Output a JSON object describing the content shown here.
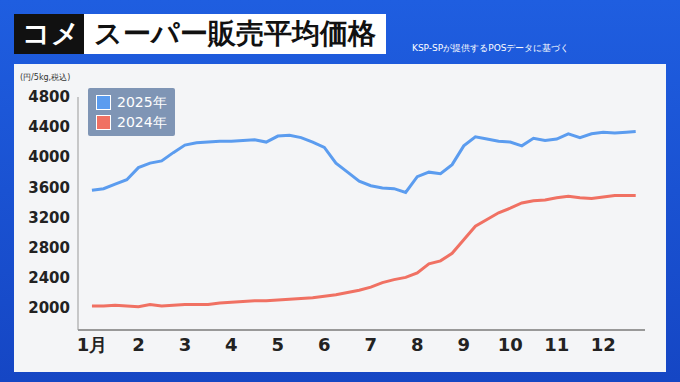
{
  "chart_data": {
    "type": "line",
    "title_label": "コメ",
    "title": "スーパー販売平均価格",
    "source": "KSP-SPが提供するPOSデータに基づく",
    "ylabel": "(円/5kg,税込)",
    "x": [
      1,
      1.25,
      1.5,
      1.75,
      2,
      2.25,
      2.5,
      2.75,
      3,
      3.25,
      3.5,
      3.75,
      4,
      4.25,
      4.5,
      4.75,
      5,
      5.25,
      5.5,
      5.75,
      6,
      6.25,
      6.5,
      6.75,
      7,
      7.25,
      7.5,
      7.75,
      8,
      8.25,
      8.5,
      8.75,
      9,
      9.25,
      9.5,
      9.75,
      10,
      10.25,
      10.5,
      10.75,
      11,
      11.25,
      11.5,
      11.75,
      12,
      12.25,
      12.5,
      12.7
    ],
    "series": [
      {
        "name": "2025年",
        "color": "#5b9cef",
        "values": [
          3560,
          3580,
          3640,
          3700,
          3860,
          3920,
          3950,
          4060,
          4160,
          4190,
          4200,
          4210,
          4210,
          4220,
          4230,
          4200,
          4280,
          4290,
          4260,
          4200,
          4130,
          3920,
          3800,
          3680,
          3620,
          3590,
          3580,
          3530,
          3740,
          3800,
          3780,
          3900,
          4150,
          4270,
          4240,
          4210,
          4200,
          4150,
          4250,
          4220,
          4240,
          4310,
          4260,
          4310,
          4330,
          4320,
          4330,
          4340
        ]
      },
      {
        "name": "2024年",
        "color": "#f07163",
        "values": [
          2020,
          2020,
          2030,
          2020,
          2010,
          2040,
          2020,
          2030,
          2040,
          2040,
          2040,
          2060,
          2070,
          2080,
          2090,
          2090,
          2100,
          2110,
          2120,
          2130,
          2150,
          2170,
          2200,
          2230,
          2270,
          2330,
          2370,
          2400,
          2460,
          2580,
          2620,
          2720,
          2900,
          3080,
          3170,
          3260,
          3320,
          3390,
          3420,
          3430,
          3460,
          3480,
          3460,
          3450,
          3470,
          3490,
          3490,
          3490
        ]
      }
    ],
    "xlim": [
      0.7,
      12.9
    ],
    "xticks": [
      {
        "value": 1,
        "label": "1月"
      },
      2,
      3,
      4,
      5,
      6,
      7,
      8,
      9,
      10,
      11,
      12
    ],
    "ylim": [
      1700,
      4800
    ],
    "yticks": [
      2000,
      2400,
      2800,
      3200,
      3600,
      4000,
      4400,
      4800
    ],
    "grid": false,
    "legend": "upper left"
  }
}
